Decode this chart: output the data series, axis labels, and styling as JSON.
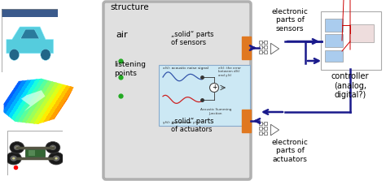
{
  "structure_label": "structure",
  "air_label": "air",
  "listening_label": "listening\npoints",
  "solid_sensors_label": "„solid“ parts\nof sensors",
  "solid_actuators_label": "„solid“ parts\nof actuators",
  "elec_sensors_label": "electronic\nparts of\nsensors",
  "elec_actuators_label": "electronic\nparts of\nactuators",
  "controller_label": "controller\n(analog,\ndigital?)",
  "navy": "#1a1a8c",
  "orange": "#e07820",
  "light_blue_box": "#cce8f4",
  "green_dot": "#22aa22",
  "fig_w": 4.74,
  "fig_h": 2.23,
  "dpi": 100
}
